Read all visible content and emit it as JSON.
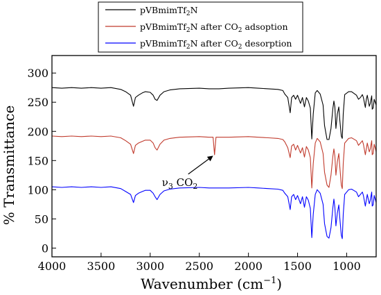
{
  "chart_data": {
    "type": "line",
    "title": "",
    "xlabel": "Wavenumber (cm−1)",
    "ylabel": "% Transmittance",
    "xlim": [
      4000,
      700
    ],
    "ylim": [
      -15,
      330
    ],
    "x_ticks": [
      4000,
      3500,
      3000,
      2500,
      2000,
      1500,
      1000
    ],
    "y_ticks": [
      0,
      50,
      100,
      150,
      200,
      250,
      300
    ],
    "x_axis_reversed": true,
    "grid": false,
    "legend_position": "top-center",
    "series": [
      {
        "name": "pVBmimTf2N",
        "color": "#000000",
        "points": [
          [
            4000,
            275
          ],
          [
            3900,
            274
          ],
          [
            3800,
            275
          ],
          [
            3700,
            274
          ],
          [
            3600,
            275
          ],
          [
            3500,
            274
          ],
          [
            3400,
            275
          ],
          [
            3300,
            272
          ],
          [
            3250,
            268
          ],
          [
            3200,
            262
          ],
          [
            3170,
            243
          ],
          [
            3150,
            258
          ],
          [
            3120,
            262
          ],
          [
            3080,
            266
          ],
          [
            3050,
            268
          ],
          [
            3000,
            267
          ],
          [
            2970,
            262
          ],
          [
            2950,
            255
          ],
          [
            2930,
            253
          ],
          [
            2900,
            262
          ],
          [
            2860,
            268
          ],
          [
            2800,
            271
          ],
          [
            2700,
            273
          ],
          [
            2500,
            274
          ],
          [
            2400,
            273
          ],
          [
            2300,
            273
          ],
          [
            2200,
            274
          ],
          [
            2000,
            275
          ],
          [
            1900,
            274
          ],
          [
            1800,
            273
          ],
          [
            1700,
            272
          ],
          [
            1650,
            270
          ],
          [
            1630,
            264
          ],
          [
            1600,
            258
          ],
          [
            1575,
            232
          ],
          [
            1560,
            258
          ],
          [
            1540,
            262
          ],
          [
            1520,
            255
          ],
          [
            1500,
            262
          ],
          [
            1470,
            248
          ],
          [
            1450,
            258
          ],
          [
            1430,
            242
          ],
          [
            1410,
            258
          ],
          [
            1390,
            252
          ],
          [
            1370,
            240
          ],
          [
            1355,
            187
          ],
          [
            1340,
            230
          ],
          [
            1320,
            266
          ],
          [
            1300,
            270
          ],
          [
            1270,
            264
          ],
          [
            1240,
            245
          ],
          [
            1225,
            210
          ],
          [
            1200,
            186
          ],
          [
            1180,
            186
          ],
          [
            1160,
            205
          ],
          [
            1140,
            240
          ],
          [
            1130,
            252
          ],
          [
            1120,
            242
          ],
          [
            1110,
            205
          ],
          [
            1095,
            230
          ],
          [
            1080,
            242
          ],
          [
            1070,
            220
          ],
          [
            1055,
            192
          ],
          [
            1045,
            188
          ],
          [
            1035,
            230
          ],
          [
            1020,
            263
          ],
          [
            980,
            268
          ],
          [
            950,
            268
          ],
          [
            900,
            262
          ],
          [
            880,
            255
          ],
          [
            860,
            258
          ],
          [
            840,
            263
          ],
          [
            830,
            258
          ],
          [
            810,
            241
          ],
          [
            800,
            255
          ],
          [
            790,
            262
          ],
          [
            770,
            243
          ],
          [
            760,
            248
          ],
          [
            745,
            261
          ],
          [
            740,
            238
          ],
          [
            730,
            240
          ],
          [
            720,
            255
          ],
          [
            710,
            250
          ],
          [
            700,
            245
          ]
        ]
      },
      {
        "name": "pVBmimTf2N after CO2 adsoption",
        "color": "#c0392b",
        "points": [
          [
            4000,
            192
          ],
          [
            3900,
            191
          ],
          [
            3800,
            192
          ],
          [
            3700,
            191
          ],
          [
            3600,
            192
          ],
          [
            3500,
            191
          ],
          [
            3400,
            192
          ],
          [
            3300,
            189
          ],
          [
            3250,
            184
          ],
          [
            3200,
            178
          ],
          [
            3170,
            162
          ],
          [
            3150,
            176
          ],
          [
            3120,
            180
          ],
          [
            3080,
            183
          ],
          [
            3050,
            185
          ],
          [
            3000,
            185
          ],
          [
            2970,
            180
          ],
          [
            2950,
            172
          ],
          [
            2930,
            168
          ],
          [
            2900,
            178
          ],
          [
            2860,
            185
          ],
          [
            2800,
            188
          ],
          [
            2700,
            190
          ],
          [
            2500,
            191
          ],
          [
            2400,
            190
          ],
          [
            2360,
            190
          ],
          [
            2345,
            160
          ],
          [
            2330,
            190
          ],
          [
            2300,
            190
          ],
          [
            2200,
            190
          ],
          [
            2000,
            191
          ],
          [
            1900,
            190
          ],
          [
            1800,
            189
          ],
          [
            1700,
            188
          ],
          [
            1650,
            186
          ],
          [
            1630,
            182
          ],
          [
            1600,
            172
          ],
          [
            1575,
            155
          ],
          [
            1560,
            175
          ],
          [
            1540,
            178
          ],
          [
            1520,
            168
          ],
          [
            1500,
            176
          ],
          [
            1470,
            163
          ],
          [
            1450,
            172
          ],
          [
            1430,
            156
          ],
          [
            1410,
            174
          ],
          [
            1390,
            168
          ],
          [
            1370,
            155
          ],
          [
            1355,
            103
          ],
          [
            1340,
            145
          ],
          [
            1320,
            180
          ],
          [
            1300,
            188
          ],
          [
            1270,
            182
          ],
          [
            1240,
            162
          ],
          [
            1225,
            130
          ],
          [
            1200,
            108
          ],
          [
            1180,
            104
          ],
          [
            1160,
            125
          ],
          [
            1140,
            158
          ],
          [
            1130,
            170
          ],
          [
            1120,
            158
          ],
          [
            1110,
            125
          ],
          [
            1095,
            148
          ],
          [
            1080,
            162
          ],
          [
            1070,
            140
          ],
          [
            1055,
            108
          ],
          [
            1045,
            102
          ],
          [
            1035,
            145
          ],
          [
            1020,
            180
          ],
          [
            980,
            188
          ],
          [
            950,
            189
          ],
          [
            900,
            184
          ],
          [
            880,
            176
          ],
          [
            860,
            180
          ],
          [
            840,
            184
          ],
          [
            830,
            178
          ],
          [
            810,
            160
          ],
          [
            800,
            170
          ],
          [
            790,
            180
          ],
          [
            770,
            165
          ],
          [
            760,
            170
          ],
          [
            745,
            184
          ],
          [
            740,
            160
          ],
          [
            730,
            162
          ],
          [
            720,
            178
          ],
          [
            710,
            172
          ],
          [
            700,
            165
          ]
        ]
      },
      {
        "name": "pVBmimTf2N after CO2 desorption",
        "color": "#0000ff",
        "points": [
          [
            4000,
            105
          ],
          [
            3900,
            104
          ],
          [
            3800,
            105
          ],
          [
            3700,
            104
          ],
          [
            3600,
            105
          ],
          [
            3500,
            104
          ],
          [
            3400,
            105
          ],
          [
            3300,
            102
          ],
          [
            3250,
            97
          ],
          [
            3200,
            92
          ],
          [
            3170,
            78
          ],
          [
            3150,
            90
          ],
          [
            3120,
            94
          ],
          [
            3080,
            97
          ],
          [
            3050,
            99
          ],
          [
            3000,
            99
          ],
          [
            2970,
            94
          ],
          [
            2950,
            88
          ],
          [
            2930,
            83
          ],
          [
            2900,
            92
          ],
          [
            2860,
            98
          ],
          [
            2800,
            101
          ],
          [
            2700,
            103
          ],
          [
            2500,
            104
          ],
          [
            2400,
            103
          ],
          [
            2300,
            103
          ],
          [
            2200,
            103
          ],
          [
            2000,
            104
          ],
          [
            1900,
            103
          ],
          [
            1800,
            102
          ],
          [
            1700,
            101
          ],
          [
            1650,
            99
          ],
          [
            1630,
            94
          ],
          [
            1600,
            88
          ],
          [
            1575,
            66
          ],
          [
            1560,
            88
          ],
          [
            1540,
            92
          ],
          [
            1520,
            83
          ],
          [
            1500,
            90
          ],
          [
            1470,
            76
          ],
          [
            1450,
            88
          ],
          [
            1430,
            70
          ],
          [
            1410,
            88
          ],
          [
            1390,
            82
          ],
          [
            1370,
            68
          ],
          [
            1355,
            18
          ],
          [
            1340,
            58
          ],
          [
            1320,
            92
          ],
          [
            1300,
            100
          ],
          [
            1270,
            94
          ],
          [
            1240,
            75
          ],
          [
            1225,
            42
          ],
          [
            1200,
            20
          ],
          [
            1180,
            17
          ],
          [
            1160,
            35
          ],
          [
            1140,
            70
          ],
          [
            1130,
            84
          ],
          [
            1120,
            70
          ],
          [
            1110,
            38
          ],
          [
            1095,
            60
          ],
          [
            1080,
            74
          ],
          [
            1070,
            52
          ],
          [
            1055,
            22
          ],
          [
            1045,
            16
          ],
          [
            1035,
            58
          ],
          [
            1020,
            92
          ],
          [
            980,
            100
          ],
          [
            950,
            101
          ],
          [
            900,
            96
          ],
          [
            880,
            88
          ],
          [
            860,
            92
          ],
          [
            840,
            96
          ],
          [
            830,
            90
          ],
          [
            810,
            72
          ],
          [
            800,
            82
          ],
          [
            790,
            92
          ],
          [
            770,
            76
          ],
          [
            760,
            82
          ],
          [
            745,
            96
          ],
          [
            740,
            72
          ],
          [
            730,
            74
          ],
          [
            720,
            90
          ],
          [
            710,
            84
          ],
          [
            700,
            78
          ]
        ]
      }
    ],
    "annotation": {
      "text_main": "ν",
      "text_sub": "3",
      "text_rest": " CO",
      "text_sub2": "2",
      "target_x": 2345,
      "target_y": 160
    }
  },
  "legend": {
    "entries": [
      {
        "prefix": "pVBmimTf",
        "sub": "2",
        "suffix": "N",
        "suffix2": "",
        "sub2": "",
        "tail": ""
      },
      {
        "prefix": "pVBmimTf",
        "sub": "2",
        "suffix": "N after CO",
        "sub2": "2",
        "tail": " adsoption"
      },
      {
        "prefix": "pVBmimTf",
        "sub": "2",
        "suffix": "N after CO",
        "sub2": "2",
        "tail": " desorption"
      }
    ]
  },
  "axes": {
    "y_title": "% Transmittance",
    "x_title_main": "Wavenumber (cm",
    "x_title_sup": "−1",
    "x_title_end": ")"
  }
}
